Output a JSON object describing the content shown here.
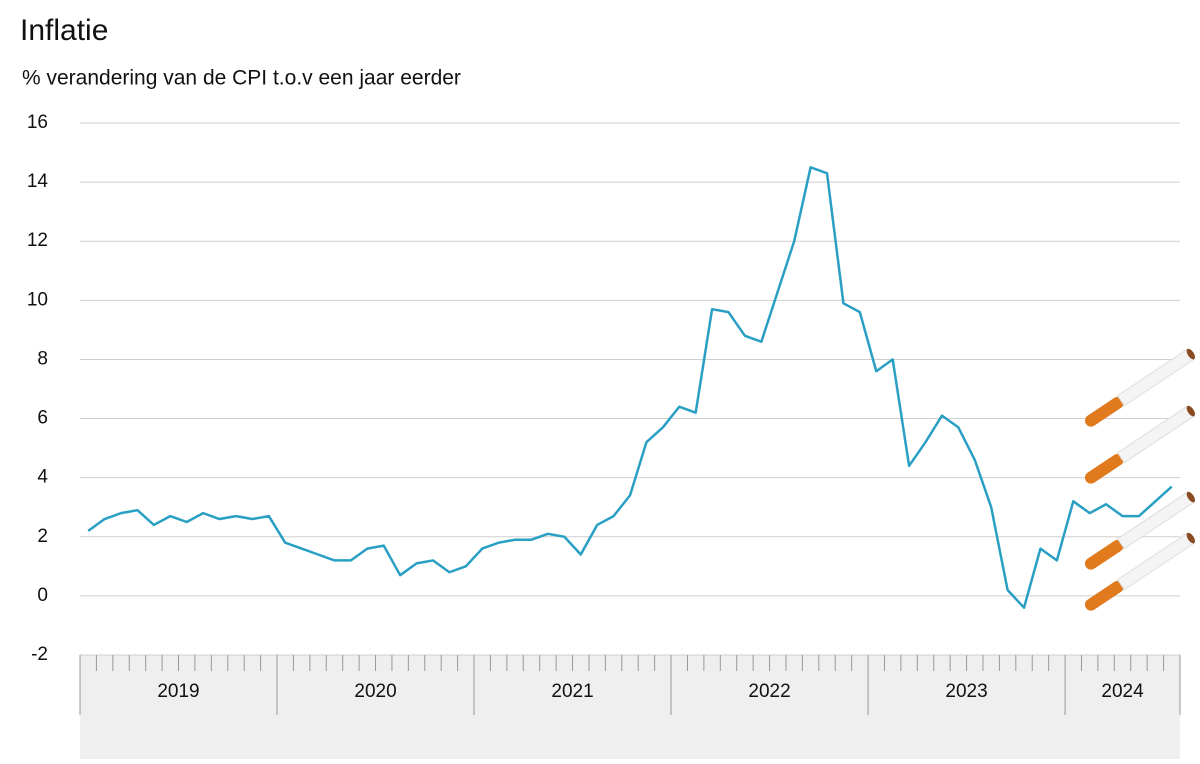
{
  "chart_data": {
    "type": "line",
    "title": "Inflatie",
    "subtitle": "% verandering van de CPI t.o.v een jaar eerder",
    "x": [
      "2019-01",
      "2019-02",
      "2019-03",
      "2019-04",
      "2019-05",
      "2019-06",
      "2019-07",
      "2019-08",
      "2019-09",
      "2019-10",
      "2019-11",
      "2019-12",
      "2020-01",
      "2020-02",
      "2020-03",
      "2020-04",
      "2020-05",
      "2020-06",
      "2020-07",
      "2020-08",
      "2020-09",
      "2020-10",
      "2020-11",
      "2020-12",
      "2021-01",
      "2021-02",
      "2021-03",
      "2021-04",
      "2021-05",
      "2021-06",
      "2021-07",
      "2021-08",
      "2021-09",
      "2021-10",
      "2021-11",
      "2021-12",
      "2022-01",
      "2022-02",
      "2022-03",
      "2022-04",
      "2022-05",
      "2022-06",
      "2022-07",
      "2022-08",
      "2022-09",
      "2022-10",
      "2022-11",
      "2022-12",
      "2023-01",
      "2023-02",
      "2023-03",
      "2023-04",
      "2023-05",
      "2023-06",
      "2023-07",
      "2023-08",
      "2023-09",
      "2023-10",
      "2023-11",
      "2023-12",
      "2024-01",
      "2024-02",
      "2024-03",
      "2024-04",
      "2024-05",
      "2024-06",
      "2024-07"
    ],
    "xticks": [
      "2019",
      "2020",
      "2021",
      "2022",
      "2023",
      "2024"
    ],
    "series": [
      {
        "color": "#2a9fc4",
        "values": [
          2.2,
          2.6,
          2.8,
          2.9,
          2.4,
          2.7,
          2.5,
          2.8,
          2.6,
          2.7,
          2.6,
          2.7,
          1.8,
          1.6,
          1.4,
          1.2,
          1.2,
          1.6,
          1.7,
          0.7,
          1.1,
          1.2,
          0.8,
          1.0,
          1.6,
          1.8,
          1.9,
          1.9,
          2.1,
          2.0,
          1.4,
          2.4,
          2.7,
          3.4,
          5.2,
          5.7,
          6.4,
          6.2,
          9.7,
          9.6,
          8.8,
          8.6,
          10.3,
          12.0,
          14.5,
          14.3,
          9.9,
          9.6,
          7.6,
          8.0,
          4.4,
          5.2,
          6.1,
          5.7,
          4.6,
          3.0,
          0.2,
          -0.4,
          1.6,
          1.2,
          3.2,
          2.8,
          3.1,
          2.7,
          2.7,
          3.2,
          3.7
        ]
      }
    ],
    "ylim": [
      -2,
      16
    ],
    "yticks": [
      -2,
      0,
      2,
      4,
      6,
      8,
      10,
      12,
      14,
      16
    ],
    "grid": true
  }
}
